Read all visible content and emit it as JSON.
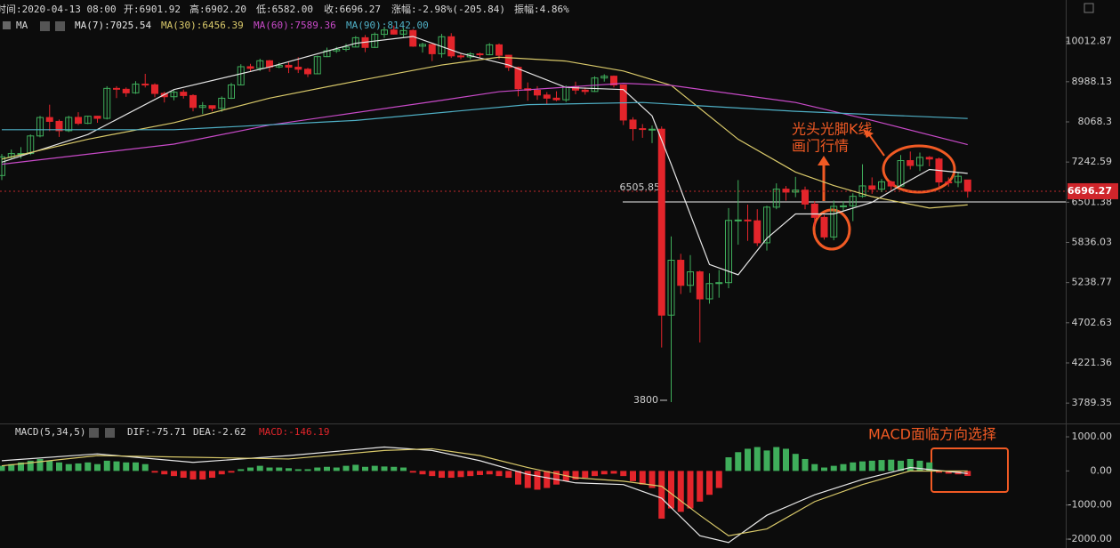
{
  "chart_data": {
    "type": "candlestick",
    "header_items": [
      "时间:2020-04-13 08:00",
      "开:6901.92",
      "高:6902.20",
      "低:6582.00",
      "收:6696.27",
      "涨幅:-2.98%(-205.84)",
      "振幅:4.86%"
    ],
    "ma_label": "MA",
    "log_scale": true,
    "ylim": [
      3605,
      10621
    ],
    "yticks": [
      10012.87,
      8988.13,
      8068.3,
      7242.59,
      6501.38,
      5836.03,
      5238.77,
      4702.63,
      4221.36,
      3789.35
    ],
    "up_color": "#3fae5b",
    "down_color": "#e3252b",
    "candles": {
      "open": [
        6985,
        7344,
        7410,
        7411,
        7769,
        8163,
        8079,
        7879,
        8166,
        8037,
        8192,
        8145,
        8828,
        8807,
        8723,
        8930,
        8913,
        8709,
        8632,
        8738,
        8660,
        8388,
        8428,
        8367,
        8597,
        8910,
        9358,
        9316,
        9508,
        9351,
        9393,
        9345,
        9294,
        9181,
        9614,
        9764,
        9804,
        9866,
        10116,
        9856,
        10208,
        10327,
        10214,
        10313,
        9889,
        9934,
        9690,
        10142,
        9633,
        9608,
        9686,
        9663,
        9924,
        9650,
        9342,
        8820,
        8784,
        8672,
        8599,
        8562,
        8869,
        8787,
        8755,
        9078,
        9122,
        8909,
        8108,
        7923,
        7909,
        7911,
        4800,
        5563,
        5200,
        5392,
        5014,
        5225,
        5238,
        6191,
        6198,
        6185,
        5830,
        6416,
        6734,
        6681,
        6716,
        6469,
        6242,
        5922,
        6430,
        6438,
        6606,
        6793,
        6733,
        6868,
        6791,
        7271,
        7176,
        7334,
        7302,
        6865,
        6859,
        6901.92
      ],
      "high": [
        7400,
        7490,
        7540,
        7800,
        8200,
        8450,
        8120,
        8200,
        8280,
        8200,
        8200,
        8880,
        8880,
        8850,
        9000,
        9180,
        8950,
        8750,
        8780,
        8800,
        8690,
        8510,
        8430,
        8640,
        8960,
        9420,
        9430,
        9560,
        9530,
        9460,
        9470,
        9600,
        9330,
        9640,
        9850,
        9870,
        9950,
        10160,
        10190,
        10260,
        10400,
        10450,
        10380,
        10350,
        9980,
        9940,
        10220,
        10240,
        9700,
        9730,
        9720,
        9970,
        9960,
        9660,
        9360,
        8970,
        8880,
        8740,
        8760,
        8900,
        8990,
        8850,
        9120,
        9170,
        9140,
        8920,
        8170,
        8020,
        7990,
        7970,
        5930,
        5660,
        5640,
        5410,
        5370,
        5420,
        6400,
        6900,
        6460,
        6380,
        6440,
        6840,
        6790,
        6960,
        6780,
        6520,
        6280,
        6530,
        6520,
        6660,
        7200,
        6950,
        6920,
        6890,
        7380,
        7450,
        7430,
        7360,
        7330,
        6950,
        7050,
        6902.2
      ],
      "low": [
        6900,
        7300,
        7310,
        7380,
        7740,
        7870,
        7750,
        7850,
        8000,
        8020,
        8050,
        8120,
        8600,
        8630,
        8700,
        8850,
        8620,
        8500,
        8550,
        8590,
        8300,
        8240,
        8300,
        8290,
        8580,
        8900,
        9230,
        9250,
        9230,
        9320,
        9200,
        9200,
        9100,
        9170,
        9600,
        9710,
        9750,
        9860,
        9730,
        9840,
        10110,
        10200,
        10130,
        9870,
        9720,
        9500,
        9590,
        9580,
        9550,
        9540,
        9600,
        9650,
        9550,
        9250,
        8640,
        8540,
        8560,
        8460,
        8530,
        8510,
        8690,
        8680,
        8740,
        8990,
        8850,
        8000,
        7670,
        7730,
        7620,
        4400,
        3800,
        5080,
        5100,
        4460,
        4950,
        5030,
        5160,
        5800,
        5860,
        5780,
        5710,
        6380,
        6530,
        6590,
        6380,
        6090,
        5880,
        5870,
        6340,
        6180,
        6580,
        6650,
        6680,
        6710,
        6780,
        7100,
        7070,
        7160,
        6760,
        6780,
        6770,
        6582.0
      ],
      "close": [
        7344,
        7410,
        7411,
        7769,
        8163,
        8079,
        7879,
        8166,
        8037,
        8192,
        8145,
        8828,
        8807,
        8723,
        8930,
        8913,
        8709,
        8632,
        8738,
        8660,
        8388,
        8428,
        8367,
        8597,
        8910,
        9358,
        9316,
        9508,
        9351,
        9393,
        9345,
        9294,
        9181,
        9614,
        9764,
        9804,
        9866,
        10116,
        9856,
        10208,
        10327,
        10214,
        10313,
        9889,
        9934,
        9690,
        10142,
        9633,
        9608,
        9686,
        9663,
        9924,
        9650,
        9342,
        8820,
        8784,
        8672,
        8599,
        8562,
        8869,
        8787,
        8755,
        9078,
        9122,
        8909,
        8108,
        7923,
        7909,
        7911,
        4800,
        5563,
        5200,
        5392,
        5014,
        5225,
        5238,
        6191,
        6198,
        6185,
        5830,
        6416,
        6734,
        6681,
        6716,
        6469,
        6242,
        5922,
        6430,
        6438,
        6606,
        6793,
        6733,
        6868,
        6791,
        7271,
        7176,
        7334,
        7302,
        6865,
        6859,
        6971,
        6696.27
      ]
    },
    "ma_series": [
      {
        "name": "MA(7):7025.54",
        "color": "#e6e6e6",
        "x": [
          0,
          9,
          18,
          28,
          37,
          43,
          48,
          53,
          59,
          65,
          68,
          70,
          74,
          77,
          80,
          83,
          87,
          91,
          94,
          97,
          101
        ],
        "values": [
          7240,
          7800,
          8800,
          9350,
          9965,
          10150,
          9700,
          9400,
          8850,
          8800,
          8200,
          7200,
          5500,
          5350,
          5900,
          6300,
          6300,
          6500,
          6800,
          7100,
          7025.54
        ]
      },
      {
        "name": "MA(30):6456.39",
        "color": "#d9c96a",
        "x": [
          0,
          9,
          18,
          28,
          37,
          46,
          52,
          59,
          65,
          70,
          77,
          83,
          87,
          91,
          97,
          101
        ],
        "values": [
          7300,
          7700,
          8050,
          8600,
          9000,
          9400,
          9600,
          9500,
          9250,
          8900,
          7700,
          7050,
          6800,
          6600,
          6400,
          6456.39
        ]
      },
      {
        "name": "MA(60):7589.36",
        "color": "#c84ac8",
        "x": [
          0,
          18,
          28,
          46,
          52,
          65,
          70,
          83,
          91,
          101
        ],
        "values": [
          7200,
          7600,
          8000,
          8550,
          8750,
          8950,
          8900,
          8500,
          8100,
          7589.36
        ]
      },
      {
        "name": "MA(90):8142.00",
        "color": "#4fb0c6",
        "x": [
          0,
          18,
          37,
          55,
          67,
          83,
          101
        ],
        "values": [
          7900,
          7900,
          8100,
          8450,
          8500,
          8300,
          8142
        ]
      }
    ],
    "last_price": 6696.27,
    "support_line": 6505.85,
    "low_marker": 3800,
    "annotations": [
      "光头光脚K线",
      "画门行情",
      "MACD面临方向选择"
    ],
    "macd": {
      "title": "MACD(5,34,5)",
      "dif_label": "DIF:-75.71",
      "dea_label": "DEA:-2.62",
      "macd_label": "MACD:-146.19",
      "ylim": [
        -2260,
        1340
      ],
      "yticks": [
        {
          "value": 1000,
          "label": "1000.00"
        },
        {
          "value": 0,
          "label": "0.00"
        },
        {
          "value": -1000,
          "label": "-1000.00"
        },
        {
          "value": -2000,
          "label": "-2000.00"
        }
      ],
      "pos_color": "#3fae5b",
      "neg_color": "#e3252b",
      "histogram": [
        150,
        200,
        250,
        300,
        350,
        300,
        250,
        200,
        220,
        250,
        200,
        300,
        280,
        250,
        250,
        200,
        -50,
        -100,
        -150,
        -200,
        -250,
        -250,
        -200,
        -100,
        -50,
        50,
        100,
        150,
        100,
        100,
        80,
        50,
        50,
        100,
        120,
        100,
        150,
        180,
        120,
        150,
        130,
        120,
        100,
        -50,
        -100,
        -150,
        -200,
        -200,
        -180,
        -150,
        -120,
        -100,
        -150,
        -200,
        -400,
        -500,
        -550,
        -500,
        -400,
        -300,
        -250,
        -200,
        -150,
        -100,
        -80,
        -150,
        -300,
        -400,
        -500,
        -1400,
        -1100,
        -1200,
        -1100,
        -900,
        -700,
        -500,
        400,
        550,
        650,
        700,
        600,
        700,
        650,
        500,
        350,
        200,
        100,
        150,
        200,
        250,
        280,
        300,
        320,
        330,
        300,
        350,
        300,
        250,
        -50,
        -80,
        -100,
        -146.19
      ],
      "dif": {
        "color": "#e8e8e8",
        "x": [
          0,
          10,
          20,
          30,
          40,
          45,
          50,
          55,
          60,
          65,
          69,
          73,
          76,
          80,
          85,
          90,
          95,
          101
        ],
        "values": [
          300,
          500,
          250,
          450,
          700,
          600,
          300,
          -100,
          -350,
          -400,
          -800,
          -1900,
          -2100,
          -1300,
          -700,
          -250,
          100,
          -75.71
        ]
      },
      "dea": {
        "color": "#d9c96a",
        "x": [
          0,
          10,
          20,
          30,
          40,
          45,
          50,
          55,
          60,
          65,
          69,
          73,
          76,
          80,
          85,
          90,
          95,
          101
        ],
        "values": [
          150,
          450,
          400,
          350,
          600,
          650,
          450,
          100,
          -200,
          -300,
          -450,
          -1300,
          -1900,
          -1700,
          -900,
          -400,
          0,
          -2.62
        ]
      }
    }
  }
}
